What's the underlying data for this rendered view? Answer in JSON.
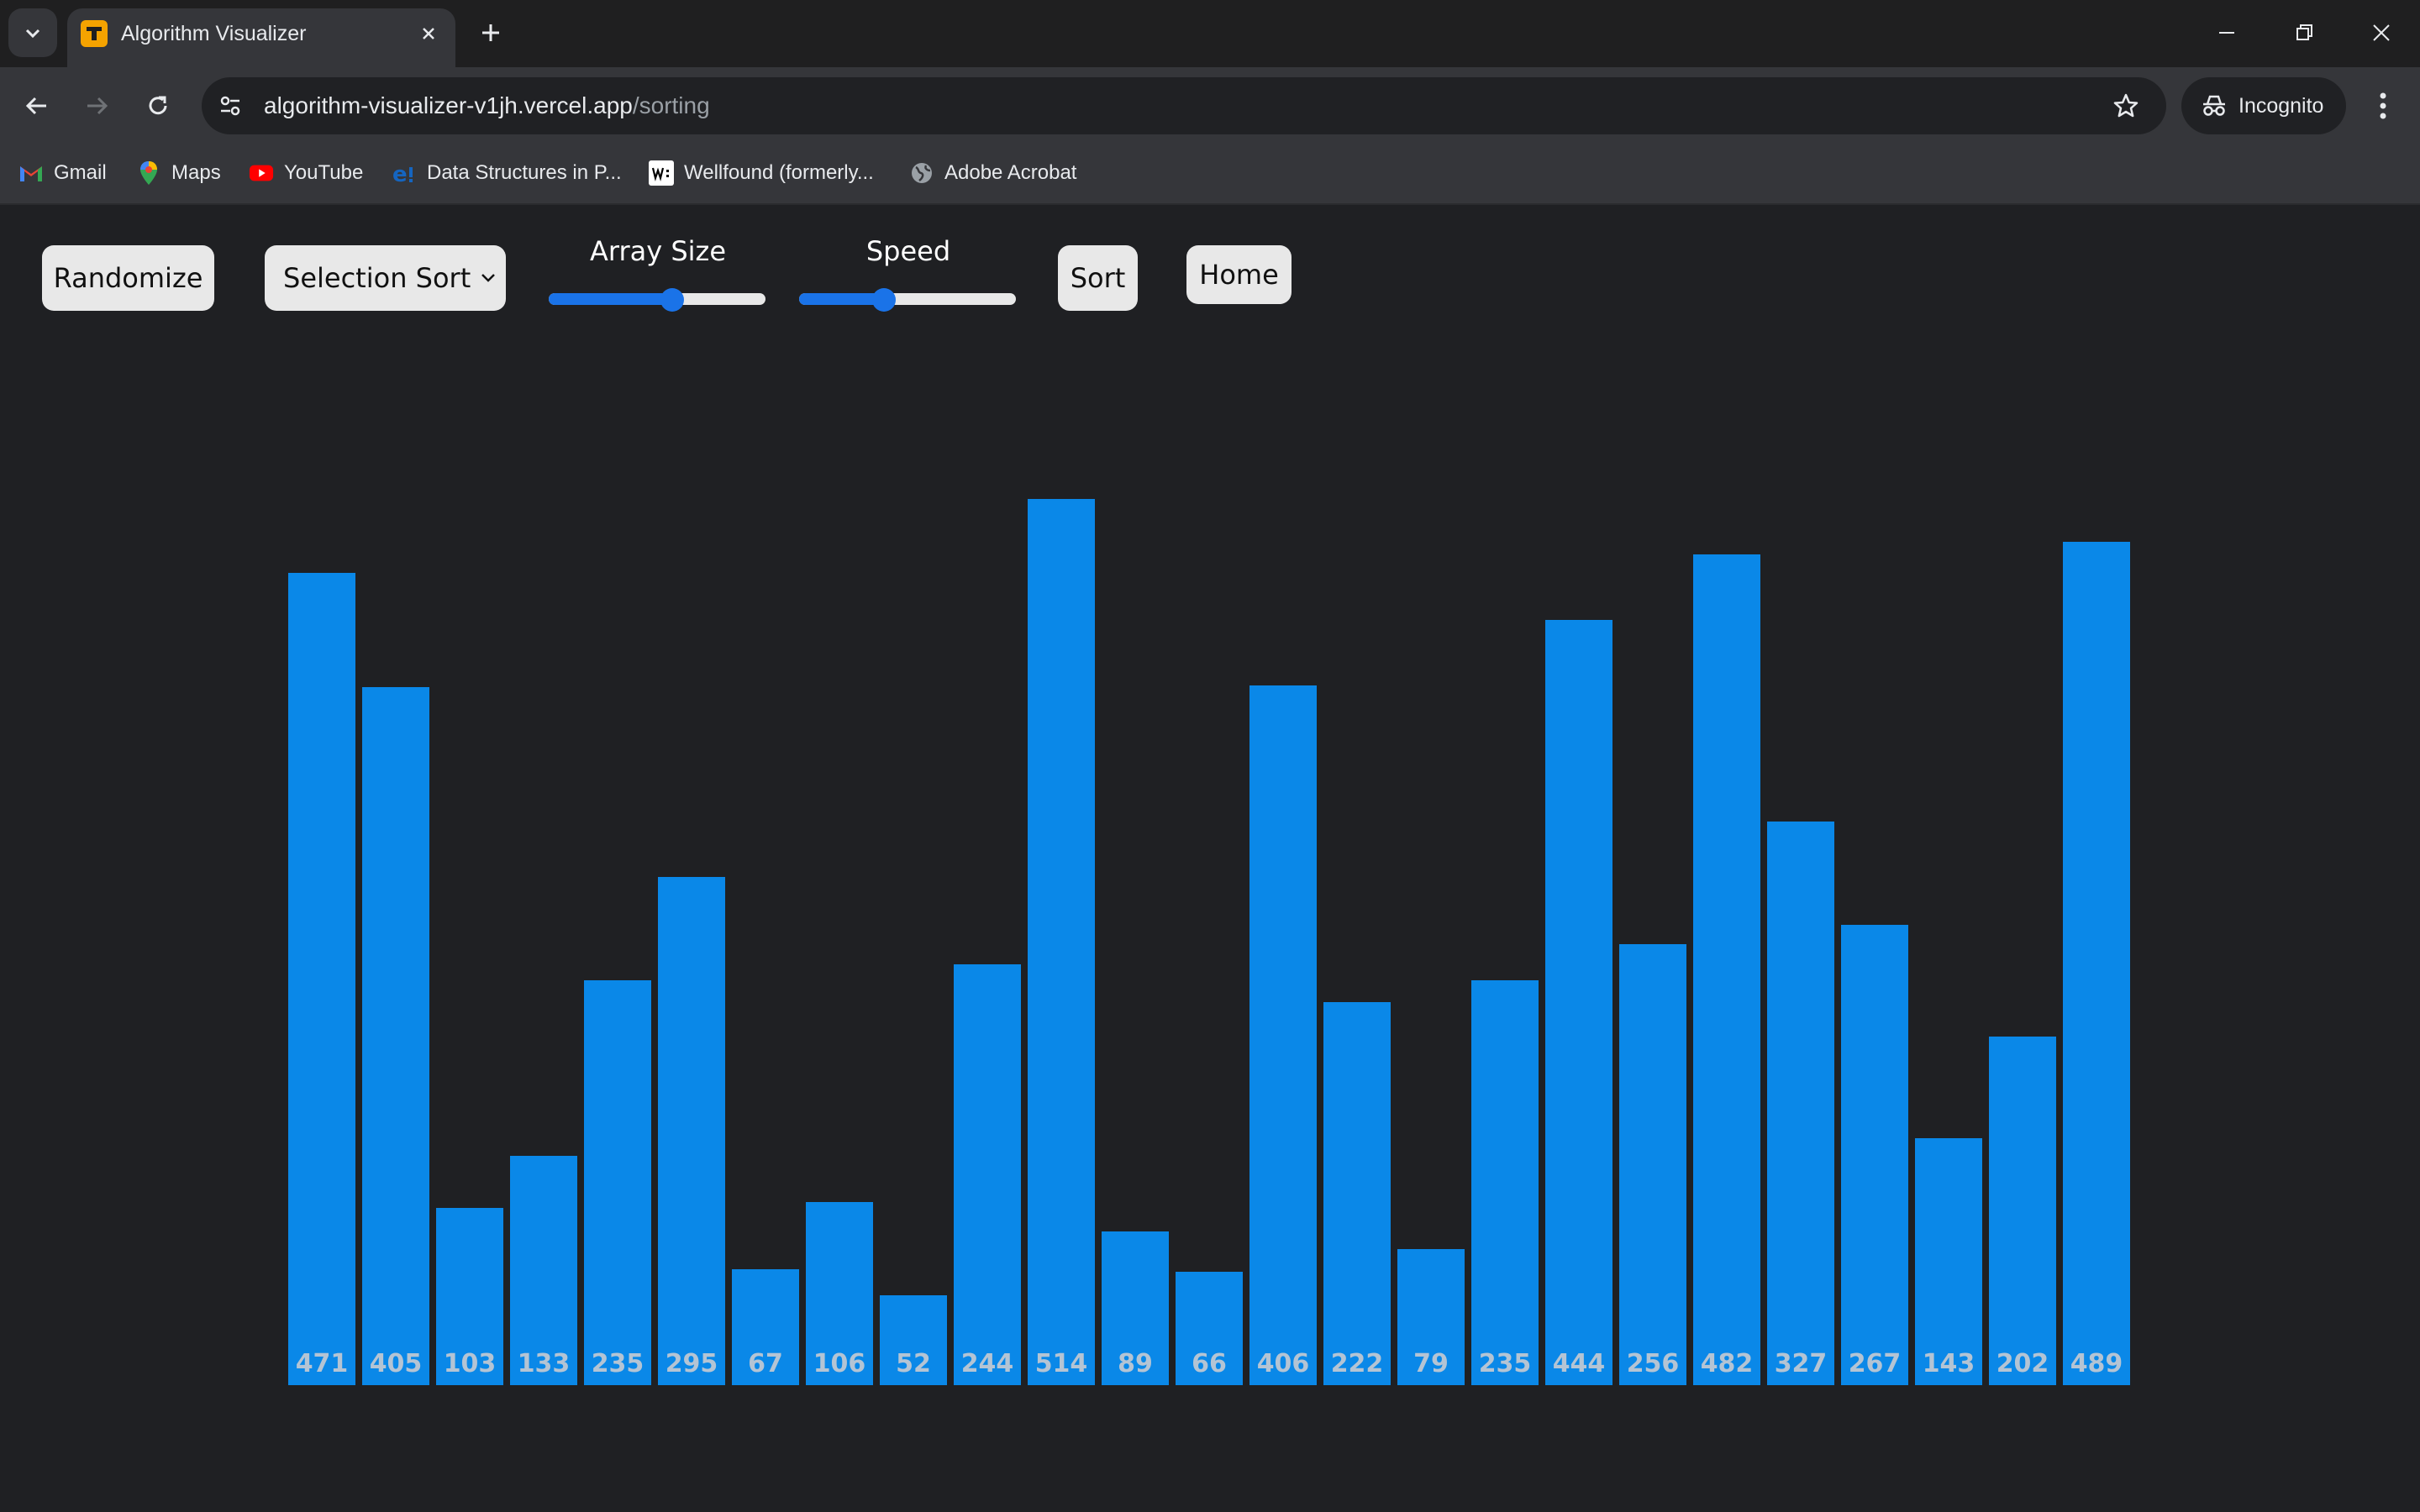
{
  "browser": {
    "tab_title": "Algorithm Visualizer",
    "url_host": "algorithm-visualizer-v1jh.vercel.app",
    "url_path": "/sorting",
    "incognito_label": "Incognito",
    "bookmarks": [
      {
        "label": "Gmail",
        "icon": "gmail-icon"
      },
      {
        "label": "Maps",
        "icon": "maps-icon"
      },
      {
        "label": "YouTube",
        "icon": "youtube-icon"
      },
      {
        "label": "Data Structures in P...",
        "icon": "ds-site-icon"
      },
      {
        "label": "Wellfound (formerly...",
        "icon": "wellfound-icon"
      },
      {
        "label": "Adobe Acrobat",
        "icon": "globe-icon"
      }
    ]
  },
  "controls": {
    "randomize_label": "Randomize",
    "algorithm_selected": "Selection Sort",
    "array_size_label": "Array Size",
    "array_size_position": 0.58,
    "speed_label": "Speed",
    "speed_position": 0.38,
    "sort_label": "Sort",
    "home_label": "Home"
  },
  "colors": {
    "bar": "#0a88e8",
    "background": "#1f2023",
    "button": "#e8e8e8",
    "slider_accent": "#1a73e8"
  },
  "chart_data": {
    "type": "bar",
    "title": "",
    "values": [
      471,
      405,
      103,
      133,
      235,
      295,
      67,
      106,
      52,
      244,
      514,
      89,
      66,
      406,
      222,
      79,
      235,
      444,
      256,
      482,
      327,
      267,
      143,
      202,
      489
    ],
    "ylim": [
      0,
      514
    ]
  }
}
